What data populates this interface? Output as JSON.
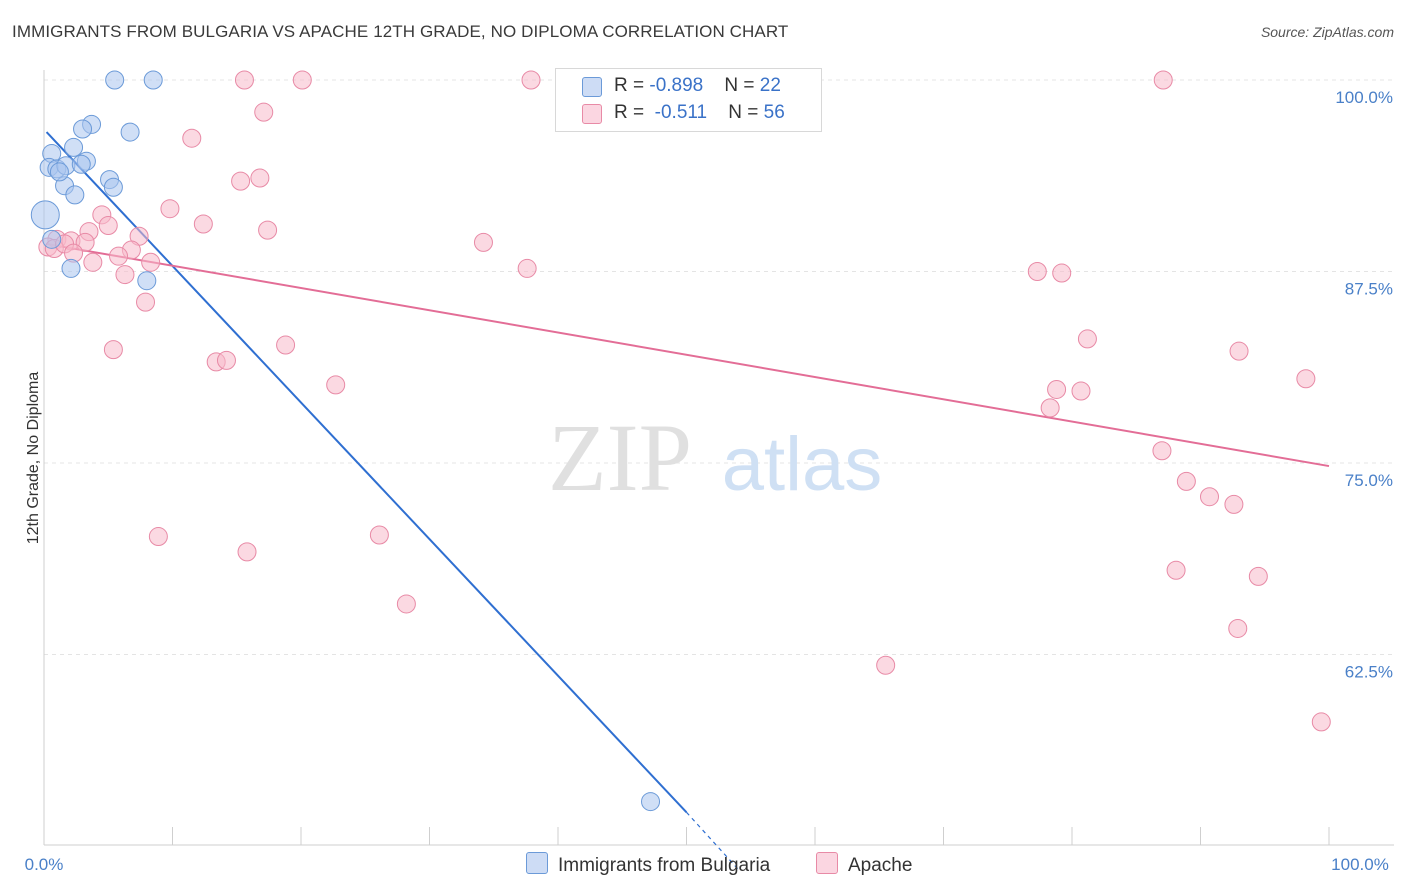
{
  "title": "IMMIGRANTS FROM BULGARIA VS APACHE 12TH GRADE, NO DIPLOMA CORRELATION CHART",
  "source": "Source: ZipAtlas.com",
  "watermark": {
    "zip": "ZIP",
    "atlas": "atlas"
  },
  "legend": {
    "rows": [
      {
        "r_label": "R = ",
        "r_value": "-0.898",
        "n_label": "N = ",
        "n_value": "22",
        "color": "#a9c4ee",
        "border": "#6b9ad8"
      },
      {
        "r_label": "R = ",
        "r_value": "-0.511",
        "n_label": "N = ",
        "n_value": "56",
        "color": "#f7b9cb",
        "border": "#e88aa6"
      }
    ]
  },
  "bottom_legend": [
    {
      "label": "Immigrants from Bulgaria",
      "color": "#a9c4ee"
    },
    {
      "label": "Apache",
      "color": "#f7b9cb"
    }
  ],
  "chart_data": {
    "type": "scatter",
    "title": "IMMIGRANTS FROM BULGARIA VS APACHE 12TH GRADE, NO DIPLOMA CORRELATION CHART",
    "xlabel": "",
    "ylabel": "12th Grade, No Diploma",
    "xlim": [
      0,
      100
    ],
    "ylim": [
      48.5,
      101
    ],
    "x_tick_labels": [
      "0.0%",
      "100.0%"
    ],
    "y_ticks": [
      {
        "value": 100,
        "label": "100.0%"
      },
      {
        "value": 87.5,
        "label": "87.5%"
      },
      {
        "value": 75,
        "label": "75.0%"
      },
      {
        "value": 62.5,
        "label": "62.5%"
      }
    ],
    "series": [
      {
        "name": "Immigrants from Bulgaria",
        "color": "#a9c4ee",
        "stroke": "#6b9ad8",
        "line_color": "#2f6fd1",
        "trend": {
          "x0": 0.2,
          "y0": 96.6,
          "x1": 50,
          "y1": 52.2,
          "dash_to_x": 54,
          "dash_to_y": 48.5
        },
        "points": [
          [
            5.5,
            100
          ],
          [
            8.5,
            100
          ],
          [
            3.7,
            97.1
          ],
          [
            3.0,
            96.8
          ],
          [
            6.7,
            96.6
          ],
          [
            2.3,
            95.6
          ],
          [
            0.6,
            95.2
          ],
          [
            3.3,
            94.7
          ],
          [
            0.4,
            94.3
          ],
          [
            1.0,
            94.2
          ],
          [
            1.7,
            94.4
          ],
          [
            2.9,
            94.5
          ],
          [
            5.1,
            93.5
          ],
          [
            1.6,
            93.1
          ],
          [
            5.4,
            93.0
          ],
          [
            2.4,
            92.5
          ],
          [
            0.1,
            91.2
          ],
          [
            0.6,
            89.6
          ],
          [
            2.1,
            87.7
          ],
          [
            8.0,
            86.9
          ],
          [
            47.2,
            52.9
          ],
          [
            1.2,
            94.0
          ]
        ]
      },
      {
        "name": "Apache",
        "color": "#f7b9cb",
        "stroke": "#e88aa6",
        "line_color": "#e36d96",
        "trend": {
          "x0": 0.2,
          "y0": 89.3,
          "x1": 100,
          "y1": 74.8
        },
        "points": [
          [
            15.6,
            100
          ],
          [
            20.1,
            100
          ],
          [
            37.9,
            100
          ],
          [
            87.1,
            100
          ],
          [
            17.1,
            97.9
          ],
          [
            11.5,
            96.2
          ],
          [
            15.3,
            93.4
          ],
          [
            16.8,
            93.6
          ],
          [
            9.8,
            91.6
          ],
          [
            4.5,
            91.2
          ],
          [
            12.4,
            90.6
          ],
          [
            5.0,
            90.5
          ],
          [
            3.5,
            90.1
          ],
          [
            17.4,
            90.2
          ],
          [
            7.4,
            89.8
          ],
          [
            1.0,
            89.6
          ],
          [
            2.1,
            89.5
          ],
          [
            0.3,
            89.1
          ],
          [
            0.8,
            89.0
          ],
          [
            1.6,
            89.3
          ],
          [
            3.2,
            89.4
          ],
          [
            6.8,
            88.9
          ],
          [
            2.3,
            88.7
          ],
          [
            5.8,
            88.5
          ],
          [
            3.8,
            88.1
          ],
          [
            8.3,
            88.1
          ],
          [
            6.3,
            87.3
          ],
          [
            37.6,
            87.7
          ],
          [
            34.2,
            89.4
          ],
          [
            77.3,
            87.5
          ],
          [
            79.2,
            87.4
          ],
          [
            7.9,
            85.5
          ],
          [
            81.2,
            83.1
          ],
          [
            5.4,
            82.4
          ],
          [
            93.0,
            82.3
          ],
          [
            18.8,
            82.7
          ],
          [
            13.4,
            81.6
          ],
          [
            14.2,
            81.7
          ],
          [
            22.7,
            80.1
          ],
          [
            78.8,
            79.8
          ],
          [
            80.7,
            79.7
          ],
          [
            98.2,
            80.5
          ],
          [
            78.3,
            78.6
          ],
          [
            87.0,
            75.8
          ],
          [
            88.9,
            73.8
          ],
          [
            90.7,
            72.8
          ],
          [
            92.6,
            72.3
          ],
          [
            8.9,
            70.2
          ],
          [
            26.1,
            70.3
          ],
          [
            15.8,
            69.2
          ],
          [
            88.1,
            68.0
          ],
          [
            94.5,
            67.6
          ],
          [
            28.2,
            65.8
          ],
          [
            92.9,
            64.2
          ],
          [
            65.5,
            61.8
          ],
          [
            99.4,
            58.1
          ]
        ]
      }
    ]
  }
}
